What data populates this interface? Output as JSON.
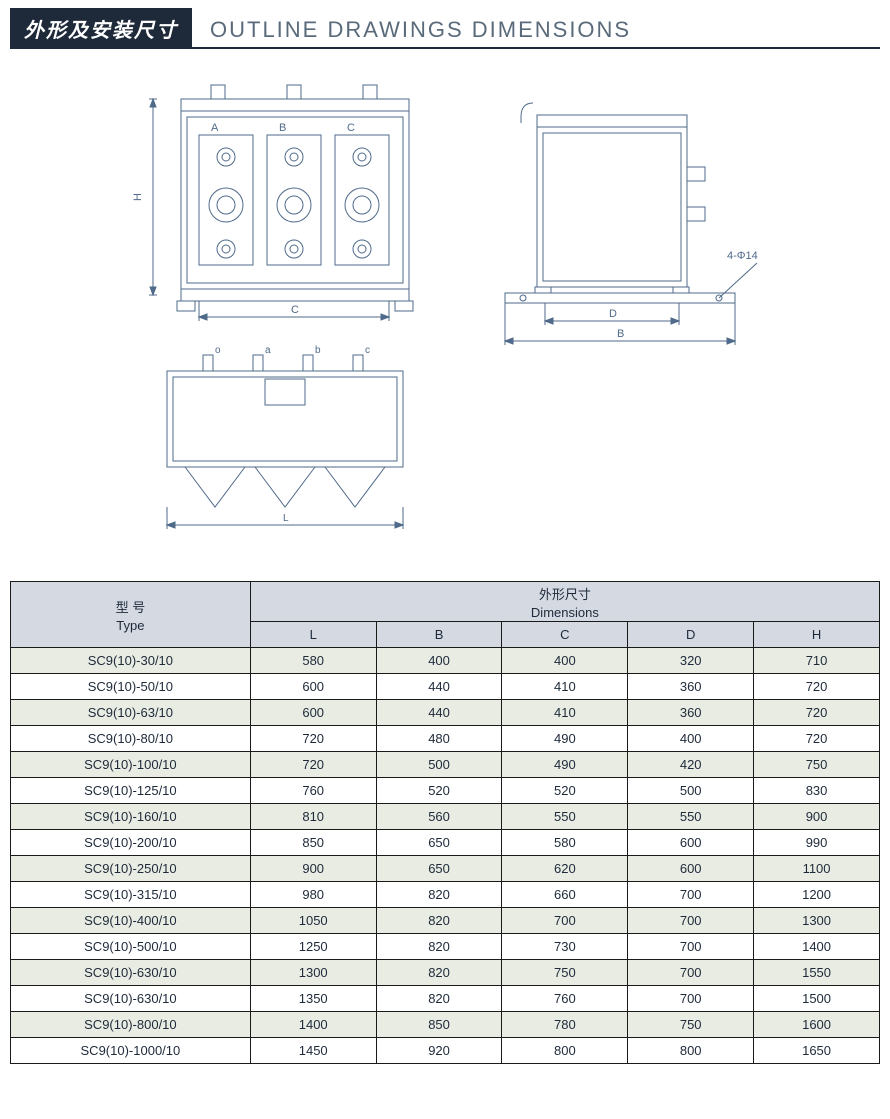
{
  "header": {
    "title_cn": "外形及安装尺寸",
    "title_en": "OUTLINE  DRAWINGS  DIMENSIONS",
    "title_bg": "#1e2a3a",
    "title_fg": "#ffffff",
    "subtitle_color": "#5a6a7a"
  },
  "drawings": {
    "stroke": "#4f6a8a",
    "label_color": "#4f6a8a",
    "front": {
      "phase_labels": [
        "A",
        "B",
        "C"
      ],
      "dim_H": "H",
      "dim_C": "C"
    },
    "side": {
      "dim_D": "D",
      "dim_B": "B",
      "hole_note": "4-Φ14"
    },
    "top": {
      "term_labels": [
        "o",
        "a",
        "b",
        "c"
      ],
      "dim_L": "L"
    }
  },
  "table": {
    "header_bg": "#d4d9e2",
    "row_odd_bg": "#e9ece3",
    "row_even_bg": "#ffffff",
    "border_color": "#1a1a1a",
    "text_color": "#1e2a3a",
    "type_header_cn": "型 号",
    "type_header_en": "Type",
    "dim_header_cn": "外形尺寸",
    "dim_header_en": "Dimensions",
    "columns": [
      "L",
      "B",
      "C",
      "D",
      "H"
    ],
    "rows": [
      {
        "type": "SC9(10)-30/10",
        "vals": [
          "580",
          "400",
          "400",
          "320",
          "710"
        ]
      },
      {
        "type": "SC9(10)-50/10",
        "vals": [
          "600",
          "440",
          "410",
          "360",
          "720"
        ]
      },
      {
        "type": "SC9(10)-63/10",
        "vals": [
          "600",
          "440",
          "410",
          "360",
          "720"
        ]
      },
      {
        "type": "SC9(10)-80/10",
        "vals": [
          "720",
          "480",
          "490",
          "400",
          "720"
        ]
      },
      {
        "type": "SC9(10)-100/10",
        "vals": [
          "720",
          "500",
          "490",
          "420",
          "750"
        ]
      },
      {
        "type": "SC9(10)-125/10",
        "vals": [
          "760",
          "520",
          "520",
          "500",
          "830"
        ]
      },
      {
        "type": "SC9(10)-160/10",
        "vals": [
          "810",
          "560",
          "550",
          "550",
          "900"
        ]
      },
      {
        "type": "SC9(10)-200/10",
        "vals": [
          "850",
          "650",
          "580",
          "600",
          "990"
        ]
      },
      {
        "type": "SC9(10)-250/10",
        "vals": [
          "900",
          "650",
          "620",
          "600",
          "1100"
        ]
      },
      {
        "type": "SC9(10)-315/10",
        "vals": [
          "980",
          "820",
          "660",
          "700",
          "1200"
        ]
      },
      {
        "type": "SC9(10)-400/10",
        "vals": [
          "1050",
          "820",
          "700",
          "700",
          "1300"
        ]
      },
      {
        "type": "SC9(10)-500/10",
        "vals": [
          "1250",
          "820",
          "730",
          "700",
          "1400"
        ]
      },
      {
        "type": "SC9(10)-630/10",
        "vals": [
          "1300",
          "820",
          "750",
          "700",
          "1550"
        ]
      },
      {
        "type": "SC9(10)-630/10",
        "vals": [
          "1350",
          "820",
          "760",
          "700",
          "1500"
        ]
      },
      {
        "type": "SC9(10)-800/10",
        "vals": [
          "1400",
          "850",
          "780",
          "750",
          "1600"
        ]
      },
      {
        "type": "SC9(10)-1000/10",
        "vals": [
          "1450",
          "920",
          "800",
          "800",
          "1650"
        ]
      }
    ]
  }
}
